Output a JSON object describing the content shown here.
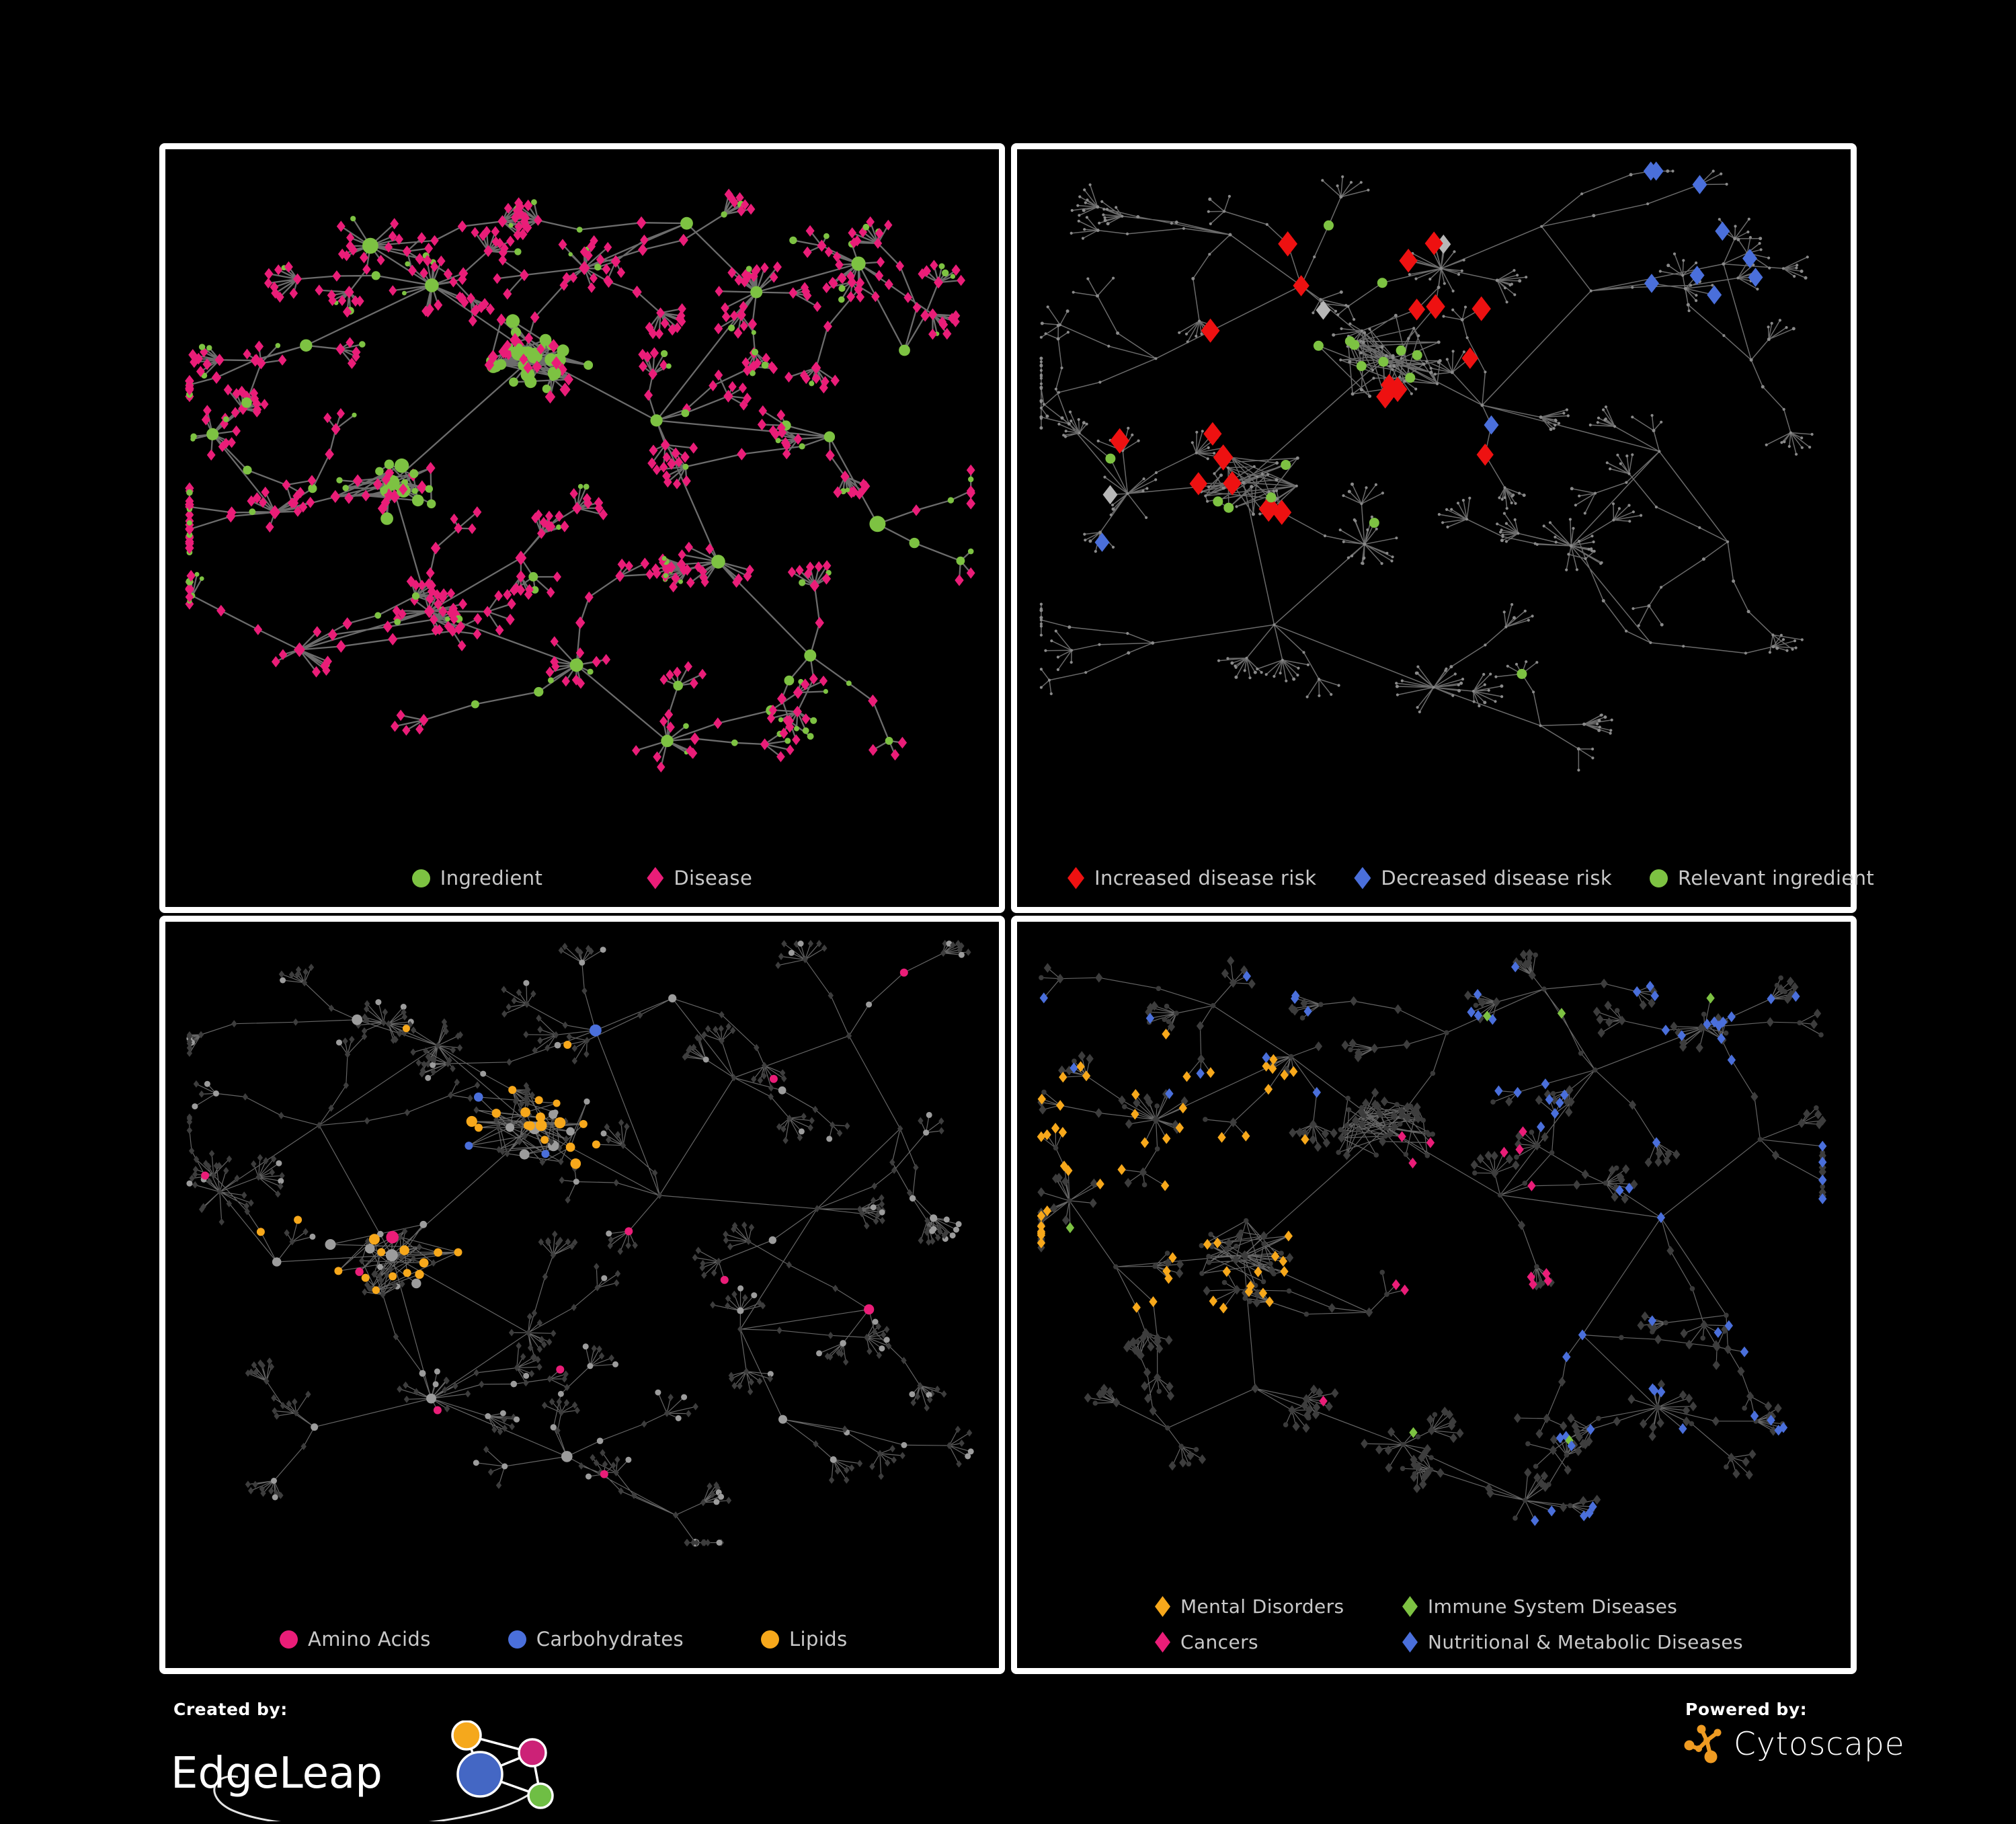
{
  "figure": {
    "background": "#000000",
    "panel_border": "#ffffff",
    "legend_text_color": "#c9c9c9"
  },
  "panels": [
    {
      "id": "ingredient-disease-network",
      "legend": [
        {
          "shape": "circle",
          "color": "#7dc242",
          "label": "Ingredient"
        },
        {
          "shape": "diamond",
          "color": "#ea1d78",
          "label": "Disease"
        }
      ]
    },
    {
      "id": "disease-risk-network",
      "legend": [
        {
          "shape": "diamond",
          "color": "#ee1111",
          "label": "Increased disease risk"
        },
        {
          "shape": "diamond",
          "color": "#4a6fdb",
          "label": "Decreased disease risk"
        },
        {
          "shape": "circle",
          "color": "#7dc242",
          "label": "Relevant ingredient"
        }
      ]
    },
    {
      "id": "nutrient-class-network",
      "legend": [
        {
          "shape": "circle",
          "color": "#ea1d78",
          "label": "Amino Acids"
        },
        {
          "shape": "circle",
          "color": "#4a6fdb",
          "label": "Carbohydrates"
        },
        {
          "shape": "circle",
          "color": "#f7a81b",
          "label": "Lipids"
        }
      ]
    },
    {
      "id": "disease-class-network",
      "legend": [
        {
          "shape": "diamond",
          "color": "#f7a81b",
          "label": "Mental Disorders"
        },
        {
          "shape": "diamond",
          "color": "#7dc242",
          "label": "Immune System Diseases"
        },
        {
          "shape": "diamond",
          "color": "#ea1d78",
          "label": "Cancers"
        },
        {
          "shape": "diamond",
          "color": "#4a6fdb",
          "label": "Nutritional & Metabolic Diseases"
        }
      ]
    }
  ],
  "footer": {
    "created_by_label": "Created by:",
    "created_by_name": "EdgeLeap",
    "powered_by_label": "Powered by:",
    "powered_by_name": "Cytoscape",
    "edgeleap_colors": {
      "blue": "#4467c4",
      "orange": "#f5a81c",
      "pink": "#cc2277",
      "green": "#6fbe44"
    },
    "cytoscape_color": "#ef9b22"
  },
  "network": {
    "panels": [
      {
        "seed": 101,
        "style": "p1",
        "edge_color": "#787878",
        "edge_width": 2.3,
        "edge_opacity": 0.9,
        "colors": {
          "ingredient": "#7dc242",
          "disease": "#ea1d78"
        }
      },
      {
        "seed": 207,
        "style": "p2",
        "edge_color": "#7d7d7d",
        "edge_width": 1.5,
        "edge_opacity": 0.85,
        "colors": {
          "base": "#8a8a8a",
          "increased": "#ee1111",
          "decreased": "#4a6fdb",
          "relevant": "#7dc242",
          "unchanged": "#b7b7b7"
        }
      },
      {
        "seed": 318,
        "style": "p3",
        "edge_color": "#909090",
        "edge_width": 1.2,
        "edge_opacity": 0.7,
        "colors": {
          "disease": "#3d3d3d",
          "ingredient": "#9c9c9c",
          "amino": "#ea1d78",
          "carb": "#4a6fdb",
          "lipid": "#f7a81b"
        }
      },
      {
        "seed": 422,
        "style": "p4",
        "edge_color": "#858585",
        "edge_width": 1.2,
        "edge_opacity": 0.75,
        "colors": {
          "ingredient": "#3a3a3a",
          "disease": "#3d3d3d",
          "mental": "#f7a81b",
          "immune": "#7dc242",
          "cancer": "#ea1d78",
          "nutritional": "#4a6fdb"
        }
      }
    ]
  }
}
